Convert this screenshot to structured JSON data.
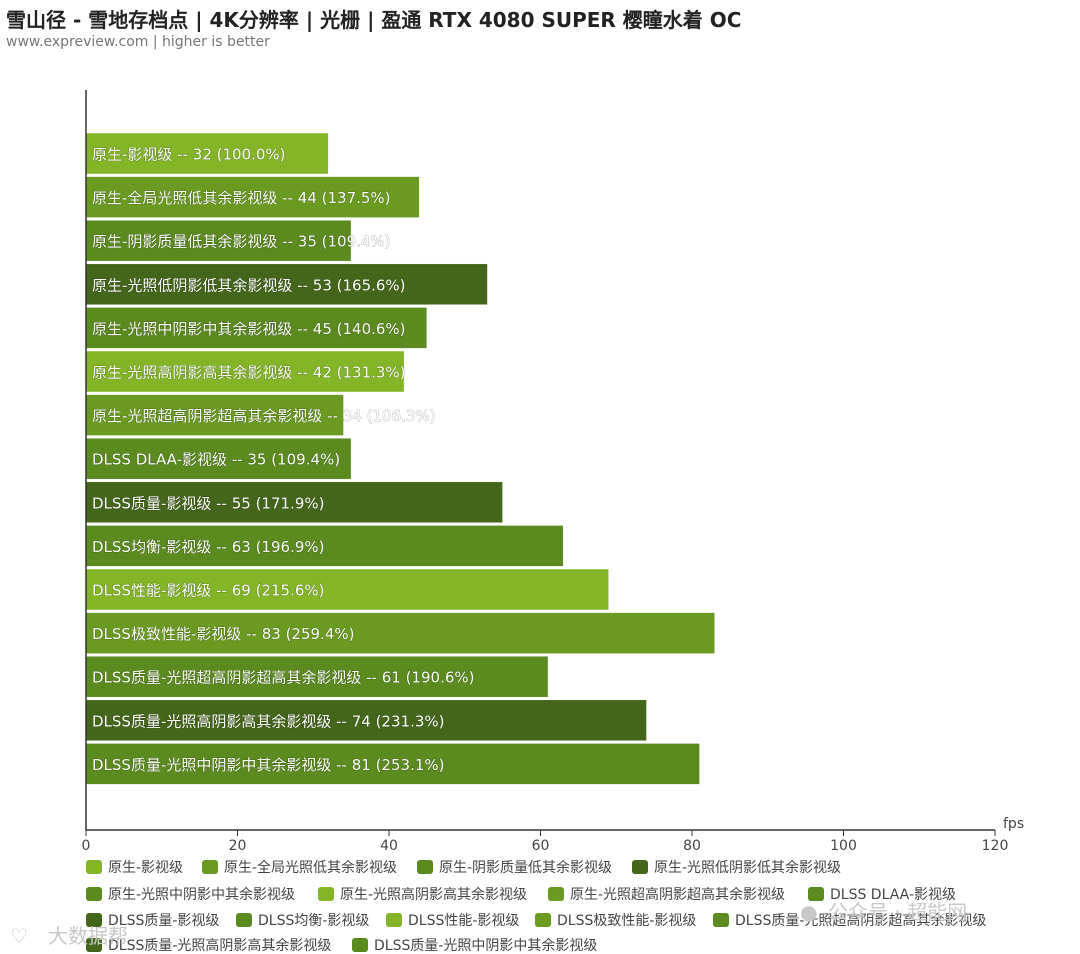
{
  "header": {
    "title": "雪山径 - 雪地存档点 | 4K分辨率 | 光栅 | 盈通 RTX 4080 SUPER 樱瞳水着 OC",
    "subtitle": "www.expreview.com | higher is better"
  },
  "watermarks": {
    "left": "大数据帮",
    "right": "公众号 · 超能网"
  },
  "colors": {
    "light": "#84b527",
    "mid": "#6a9a20",
    "mid2": "#5b8a1e",
    "dark": "#44661a",
    "axis": "#333333"
  },
  "chart_data": {
    "type": "bar",
    "orientation": "horizontal",
    "xlabel": "fps",
    "xlim": [
      0,
      120
    ],
    "xticks": [
      "0",
      "20",
      "40",
      "60",
      "80",
      "100",
      "120"
    ],
    "grid": false,
    "legend_position": "bottom",
    "categories": [
      "原生-影视级",
      "原生-全局光照低其余影视级",
      "原生-阴影质量低其余影视级",
      "原生-光照低阴影低其余影视级",
      "原生-光照中阴影中其余影视级",
      "原生-光照高阴影高其余影视级",
      "原生-光照超高阴影超高其余影视级",
      "DLSS DLAA-影视级",
      "DLSS质量-影视级",
      "DLSS均衡-影视级",
      "DLSS性能-影视级",
      "DLSS极致性能-影视级",
      "DLSS质量-光照超高阴影超高其余影视级",
      "DLSS质量-光照高阴影高其余影视级",
      "DLSS质量-光照中阴影中其余影视级"
    ],
    "values": [
      32,
      44,
      35,
      53,
      45,
      42,
      34,
      35,
      55,
      63,
      69,
      83,
      61,
      74,
      81
    ],
    "bar_labels": [
      "原生-影视级  --  32 (100.0%)",
      "原生-全局光照低其余影视级  --  44 (137.5%)",
      "原生-阴影质量低其余影视级  --  35 (109.4%)",
      "原生-光照低阴影低其余影视级  --  53 (165.6%)",
      "原生-光照中阴影中其余影视级  --  45 (140.6%)",
      "原生-光照高阴影高其余影视级  --  42 (131.3%)",
      "原生-光照超高阴影超高其余影视级  --  34 (106.3%)",
      "DLSS DLAA-影视级  --  35 (109.4%)",
      "DLSS质量-影视级  --  55 (171.9%)",
      "DLSS均衡-影视级  --  63 (196.9%)",
      "DLSS性能-影视级  --  69 (215.6%)",
      "DLSS极致性能-影视级  --  83 (259.4%)",
      "DLSS质量-光照超高阴影超高其余影视级  --  61 (190.6%)",
      "DLSS质量-光照高阴影高其余影视级  --  74 (231.3%)",
      "DLSS质量-光照中阴影中其余影视级  --  81 (253.1%)"
    ],
    "bar_colors": [
      "#84b527",
      "#6a9a20",
      "#5b8a1e",
      "#44661a",
      "#5b8a1e",
      "#84b527",
      "#6a9a20",
      "#5b8a1e",
      "#44661a",
      "#5b8a1e",
      "#84b527",
      "#6a9a20",
      "#5b8a1e",
      "#44661a",
      "#5b8a1e"
    ],
    "legend": [
      "原生-影视级",
      "原生-全局光照低其余影视级",
      "原生-阴影质量低其余影视级",
      "原生-光照低阴影低其余影视级",
      "原生-光照中阴影中其余影视级",
      "原生-光照高阴影高其余影视级",
      "原生-光照超高阴影超高其余影视级",
      "DLSS DLAA-影视级",
      "DLSS质量-影视级",
      "DLSS均衡-影视级",
      "DLSS性能-影视级",
      "DLSS极致性能-影视级",
      "DLSS质量-光照超高阴影超高其余影视级",
      "DLSS质量-光照高阴影高其余影视级",
      "DLSS质量-光照中阴影中其余影视级"
    ]
  }
}
